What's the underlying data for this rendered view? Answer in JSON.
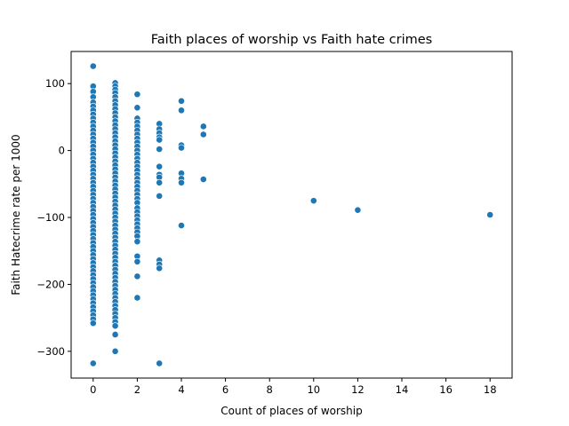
{
  "chart_data": {
    "type": "scatter",
    "title": "Faith places of worship vs Faith hate crimes",
    "xlabel": "Count of places of worship",
    "ylabel": "Faith Hatecrime rate per 1000",
    "xlim": [
      -1,
      19
    ],
    "ylim": [
      -340,
      148
    ],
    "xticks": [
      0,
      2,
      4,
      6,
      8,
      10,
      12,
      14,
      16,
      18
    ],
    "yticks": [
      -300,
      -200,
      -100,
      0,
      100
    ],
    "grid": false,
    "legend": "none",
    "series": [
      {
        "color": "#1f77b4",
        "points": [
          [
            0,
            126
          ],
          [
            0,
            96
          ],
          [
            0,
            88
          ],
          [
            0,
            80
          ],
          [
            0,
            72
          ],
          [
            0,
            66
          ],
          [
            0,
            60
          ],
          [
            0,
            54
          ],
          [
            0,
            48
          ],
          [
            0,
            42
          ],
          [
            0,
            36
          ],
          [
            0,
            30
          ],
          [
            0,
            24
          ],
          [
            0,
            18
          ],
          [
            0,
            12
          ],
          [
            0,
            6
          ],
          [
            0,
            0
          ],
          [
            0,
            -6
          ],
          [
            0,
            -12
          ],
          [
            0,
            -18
          ],
          [
            0,
            -24
          ],
          [
            0,
            -30
          ],
          [
            0,
            -36
          ],
          [
            0,
            -42
          ],
          [
            0,
            -48
          ],
          [
            0,
            -54
          ],
          [
            0,
            -60
          ],
          [
            0,
            -66
          ],
          [
            0,
            -72
          ],
          [
            0,
            -78
          ],
          [
            0,
            -84
          ],
          [
            0,
            -90
          ],
          [
            0,
            -96
          ],
          [
            0,
            -102
          ],
          [
            0,
            -108
          ],
          [
            0,
            -114
          ],
          [
            0,
            -120
          ],
          [
            0,
            -126
          ],
          [
            0,
            -132
          ],
          [
            0,
            -138
          ],
          [
            0,
            -144
          ],
          [
            0,
            -150
          ],
          [
            0,
            -156
          ],
          [
            0,
            -162
          ],
          [
            0,
            -168
          ],
          [
            0,
            -174
          ],
          [
            0,
            -180
          ],
          [
            0,
            -186
          ],
          [
            0,
            -192
          ],
          [
            0,
            -198
          ],
          [
            0,
            -204
          ],
          [
            0,
            -210
          ],
          [
            0,
            -216
          ],
          [
            0,
            -222
          ],
          [
            0,
            -228
          ],
          [
            0,
            -234
          ],
          [
            0,
            -240
          ],
          [
            0,
            -246
          ],
          [
            0,
            -252
          ],
          [
            0,
            -258
          ],
          [
            0,
            -318
          ],
          [
            1,
            101
          ],
          [
            1,
            96
          ],
          [
            1,
            91
          ],
          [
            1,
            86
          ],
          [
            1,
            80
          ],
          [
            1,
            74
          ],
          [
            1,
            68
          ],
          [
            1,
            62
          ],
          [
            1,
            56
          ],
          [
            1,
            50
          ],
          [
            1,
            44
          ],
          [
            1,
            38
          ],
          [
            1,
            32
          ],
          [
            1,
            26
          ],
          [
            1,
            20
          ],
          [
            1,
            14
          ],
          [
            1,
            8
          ],
          [
            1,
            2
          ],
          [
            1,
            -4
          ],
          [
            1,
            -10
          ],
          [
            1,
            -16
          ],
          [
            1,
            -22
          ],
          [
            1,
            -28
          ],
          [
            1,
            -34
          ],
          [
            1,
            -40
          ],
          [
            1,
            -46
          ],
          [
            1,
            -52
          ],
          [
            1,
            -58
          ],
          [
            1,
            -64
          ],
          [
            1,
            -70
          ],
          [
            1,
            -76
          ],
          [
            1,
            -82
          ],
          [
            1,
            -88
          ],
          [
            1,
            -94
          ],
          [
            1,
            -100
          ],
          [
            1,
            -106
          ],
          [
            1,
            -112
          ],
          [
            1,
            -118
          ],
          [
            1,
            -124
          ],
          [
            1,
            -130
          ],
          [
            1,
            -136
          ],
          [
            1,
            -142
          ],
          [
            1,
            -148
          ],
          [
            1,
            -154
          ],
          [
            1,
            -160
          ],
          [
            1,
            -166
          ],
          [
            1,
            -172
          ],
          [
            1,
            -178
          ],
          [
            1,
            -184
          ],
          [
            1,
            -190
          ],
          [
            1,
            -196
          ],
          [
            1,
            -202
          ],
          [
            1,
            -208
          ],
          [
            1,
            -214
          ],
          [
            1,
            -220
          ],
          [
            1,
            -226
          ],
          [
            1,
            -232
          ],
          [
            1,
            -238
          ],
          [
            1,
            -244
          ],
          [
            1,
            -250
          ],
          [
            1,
            -256
          ],
          [
            1,
            -262
          ],
          [
            1,
            -275
          ],
          [
            1,
            -300
          ],
          [
            2,
            84
          ],
          [
            2,
            64
          ],
          [
            2,
            48
          ],
          [
            2,
            42
          ],
          [
            2,
            36
          ],
          [
            2,
            30
          ],
          [
            2,
            24
          ],
          [
            2,
            18
          ],
          [
            2,
            12
          ],
          [
            2,
            6
          ],
          [
            2,
            0
          ],
          [
            2,
            -6
          ],
          [
            2,
            -12
          ],
          [
            2,
            -18
          ],
          [
            2,
            -24
          ],
          [
            2,
            -30
          ],
          [
            2,
            -36
          ],
          [
            2,
            -42
          ],
          [
            2,
            -48
          ],
          [
            2,
            -54
          ],
          [
            2,
            -60
          ],
          [
            2,
            -66
          ],
          [
            2,
            -72
          ],
          [
            2,
            -78
          ],
          [
            2,
            -86
          ],
          [
            2,
            -92
          ],
          [
            2,
            -98
          ],
          [
            2,
            -104
          ],
          [
            2,
            -110
          ],
          [
            2,
            -116
          ],
          [
            2,
            -122
          ],
          [
            2,
            -128
          ],
          [
            2,
            -136
          ],
          [
            2,
            -158
          ],
          [
            2,
            -166
          ],
          [
            2,
            -188
          ],
          [
            2,
            -220
          ],
          [
            3,
            40
          ],
          [
            3,
            32
          ],
          [
            3,
            26
          ],
          [
            3,
            20
          ],
          [
            3,
            16
          ],
          [
            3,
            2
          ],
          [
            3,
            -24
          ],
          [
            3,
            -36
          ],
          [
            3,
            -40
          ],
          [
            3,
            -48
          ],
          [
            3,
            -68
          ],
          [
            3,
            -164
          ],
          [
            3,
            -170
          ],
          [
            3,
            -176
          ],
          [
            3,
            -318
          ],
          [
            4,
            74
          ],
          [
            4,
            60
          ],
          [
            4,
            8
          ],
          [
            4,
            4
          ],
          [
            4,
            -34
          ],
          [
            4,
            -42
          ],
          [
            4,
            -48
          ],
          [
            4,
            -112
          ],
          [
            5,
            36
          ],
          [
            5,
            24
          ],
          [
            5,
            -43
          ],
          [
            10,
            -75
          ],
          [
            12,
            -89
          ],
          [
            18,
            -96
          ]
        ]
      }
    ]
  }
}
